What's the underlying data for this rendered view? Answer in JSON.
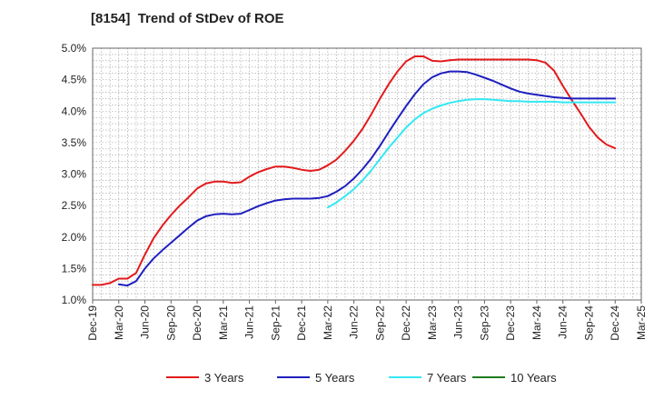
{
  "chart_data": {
    "type": "line",
    "title": "[8154]  Trend of StDev of ROE",
    "xlabel": "",
    "ylabel": "",
    "x_ticks": [
      "Dec-19",
      "Mar-20",
      "Jun-20",
      "Sep-20",
      "Dec-20",
      "Mar-21",
      "Jun-21",
      "Sep-21",
      "Dec-21",
      "Mar-22",
      "Jun-22",
      "Sep-22",
      "Dec-22",
      "Mar-23",
      "Jun-23",
      "Sep-23",
      "Dec-23",
      "Mar-24",
      "Jun-24",
      "Sep-24",
      "Dec-24",
      "Mar-25"
    ],
    "y_ticks": [
      "1.0%",
      "1.5%",
      "2.0%",
      "2.5%",
      "3.0%",
      "3.5%",
      "4.0%",
      "4.5%",
      "5.0%"
    ],
    "ylim": [
      1.0,
      5.0
    ],
    "y_unit": "%",
    "grid": true,
    "legend_position": "bottom",
    "series": [
      {
        "name": "3 Years",
        "color": "#e31a1c",
        "x": [
          "Dec-19",
          "Jan-20",
          "Feb-20",
          "Mar-20",
          "Apr-20",
          "May-20",
          "Jun-20",
          "Jul-20",
          "Aug-20",
          "Sep-20",
          "Oct-20",
          "Nov-20",
          "Dec-20",
          "Jan-21",
          "Feb-21",
          "Mar-21",
          "Apr-21",
          "May-21",
          "Jun-21",
          "Jul-21",
          "Aug-21",
          "Sep-21",
          "Oct-21",
          "Nov-21",
          "Dec-21",
          "Jan-22",
          "Feb-22",
          "Mar-22",
          "Apr-22",
          "May-22",
          "Jun-22",
          "Jul-22",
          "Aug-22",
          "Sep-22",
          "Oct-22",
          "Nov-22",
          "Dec-22",
          "Jan-23",
          "Feb-23",
          "Mar-23",
          "Apr-23",
          "May-23",
          "Jun-23",
          "Jul-23",
          "Aug-23",
          "Sep-23",
          "Oct-23",
          "Nov-23",
          "Dec-23",
          "Jan-24",
          "Feb-24",
          "Mar-24",
          "Apr-24",
          "May-24",
          "Jun-24",
          "Jul-24",
          "Aug-24",
          "Sep-24",
          "Oct-24",
          "Nov-24",
          "Dec-24"
        ],
        "values": [
          1.24,
          1.24,
          1.27,
          1.34,
          1.34,
          1.43,
          1.72,
          1.98,
          2.18,
          2.35,
          2.5,
          2.63,
          2.77,
          2.85,
          2.88,
          2.88,
          2.86,
          2.87,
          2.96,
          3.03,
          3.08,
          3.12,
          3.12,
          3.1,
          3.07,
          3.05,
          3.07,
          3.14,
          3.23,
          3.37,
          3.53,
          3.72,
          3.95,
          4.2,
          4.43,
          4.63,
          4.79,
          4.87,
          4.87,
          4.8,
          4.79,
          4.81,
          4.82,
          4.82,
          4.82,
          4.82,
          4.82,
          4.82,
          4.82,
          4.82,
          4.82,
          4.81,
          4.77,
          4.64,
          4.4,
          4.18,
          3.97,
          3.75,
          3.58,
          3.47,
          3.41
        ]
      },
      {
        "name": "5 Years",
        "color": "#1f1fbf",
        "x": [
          "Mar-20",
          "Apr-20",
          "May-20",
          "Jun-20",
          "Jul-20",
          "Aug-20",
          "Sep-20",
          "Oct-20",
          "Nov-20",
          "Dec-20",
          "Jan-21",
          "Feb-21",
          "Mar-21",
          "Apr-21",
          "May-21",
          "Jun-21",
          "Jul-21",
          "Aug-21",
          "Sep-21",
          "Oct-21",
          "Nov-21",
          "Dec-21",
          "Jan-22",
          "Feb-22",
          "Mar-22",
          "Apr-22",
          "May-22",
          "Jun-22",
          "Jul-22",
          "Aug-22",
          "Sep-22",
          "Oct-22",
          "Nov-22",
          "Dec-22",
          "Jan-23",
          "Feb-23",
          "Mar-23",
          "Apr-23",
          "May-23",
          "Jun-23",
          "Jul-23",
          "Aug-23",
          "Sep-23",
          "Oct-23",
          "Nov-23",
          "Dec-23",
          "Jan-24",
          "Feb-24",
          "Mar-24",
          "Apr-24",
          "May-24",
          "Jun-24",
          "Jul-24",
          "Aug-24",
          "Sep-24",
          "Oct-24",
          "Nov-24",
          "Dec-24"
        ],
        "values": [
          1.25,
          1.23,
          1.3,
          1.5,
          1.66,
          1.79,
          1.91,
          2.03,
          2.15,
          2.26,
          2.33,
          2.36,
          2.37,
          2.36,
          2.37,
          2.43,
          2.49,
          2.54,
          2.58,
          2.6,
          2.61,
          2.61,
          2.61,
          2.62,
          2.65,
          2.72,
          2.81,
          2.93,
          3.08,
          3.25,
          3.45,
          3.67,
          3.88,
          4.08,
          4.27,
          4.43,
          4.54,
          4.6,
          4.63,
          4.63,
          4.62,
          4.58,
          4.53,
          4.48,
          4.42,
          4.36,
          4.31,
          4.28,
          4.26,
          4.24,
          4.22,
          4.21,
          4.2,
          4.2,
          4.2,
          4.2,
          4.2,
          4.2
        ]
      },
      {
        "name": "7 Years",
        "color": "#33e8f2",
        "x": [
          "Mar-22",
          "Apr-22",
          "May-22",
          "Jun-22",
          "Jul-22",
          "Aug-22",
          "Sep-22",
          "Oct-22",
          "Nov-22",
          "Dec-22",
          "Jan-23",
          "Feb-23",
          "Mar-23",
          "Apr-23",
          "May-23",
          "Jun-23",
          "Jul-23",
          "Aug-23",
          "Sep-23",
          "Oct-23",
          "Nov-23",
          "Dec-23",
          "Jan-24",
          "Feb-24",
          "Mar-24",
          "Apr-24",
          "May-24",
          "Jun-24",
          "Jul-24",
          "Aug-24",
          "Sep-24",
          "Oct-24",
          "Nov-24",
          "Dec-24"
        ],
        "values": [
          2.47,
          2.55,
          2.65,
          2.76,
          2.9,
          3.06,
          3.24,
          3.42,
          3.58,
          3.74,
          3.87,
          3.97,
          4.04,
          4.09,
          4.13,
          4.16,
          4.18,
          4.19,
          4.19,
          4.18,
          4.17,
          4.16,
          4.16,
          4.15,
          4.15,
          4.15,
          4.15,
          4.14,
          4.14,
          4.14,
          4.14,
          4.14,
          4.14,
          4.14
        ]
      },
      {
        "name": "10 Years",
        "color": "#1e7d1e",
        "x": [],
        "values": []
      }
    ]
  }
}
